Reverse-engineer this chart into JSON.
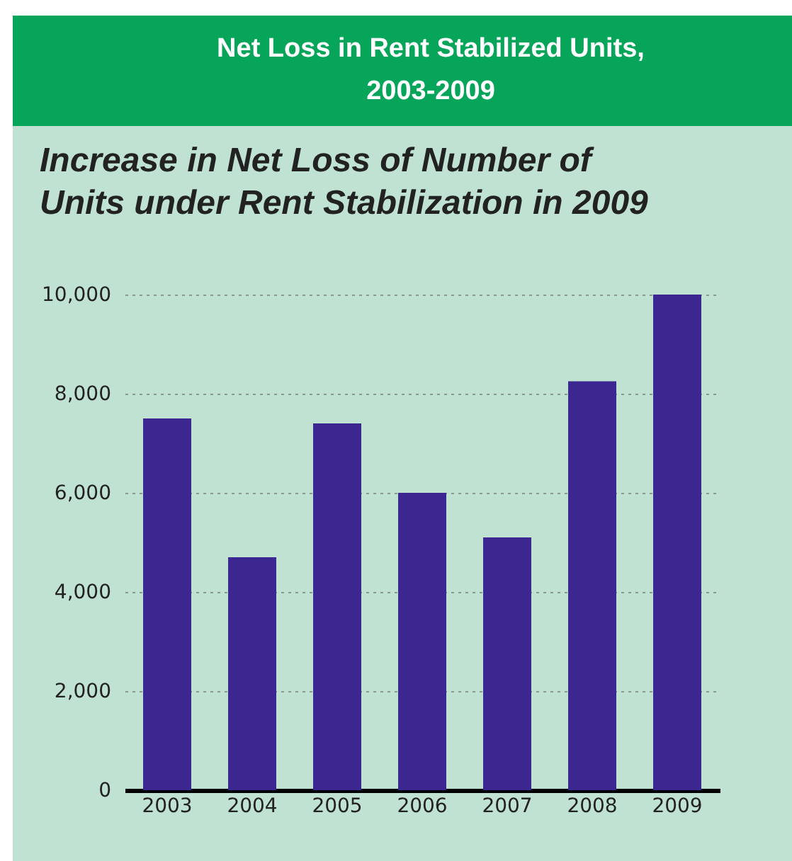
{
  "chart_data": {
    "type": "bar",
    "title": "Net Loss in Rent Stabilized Units,\n2003-2009",
    "subtitle": "Increase in Net Loss of Number of\nUnits under Rent Stabilization in 2009",
    "categories": [
      "2003",
      "2004",
      "2005",
      "2006",
      "2007",
      "2008",
      "2009"
    ],
    "values": [
      7500,
      4700,
      7400,
      6000,
      5100,
      8250,
      10000
    ],
    "color": "#3c2690",
    "ylim": [
      0,
      10000
    ],
    "yticks": [
      {
        "value": 0,
        "label": "0"
      },
      {
        "value": 2000,
        "label": "2,000"
      },
      {
        "value": 4000,
        "label": "4,000"
      },
      {
        "value": 6000,
        "label": "6,000"
      },
      {
        "value": 8000,
        "label": "8,000"
      },
      {
        "value": 10000,
        "label": "10,000"
      }
    ],
    "grid": "y"
  }
}
